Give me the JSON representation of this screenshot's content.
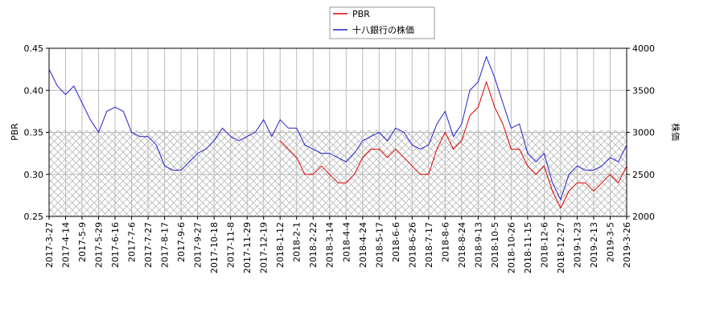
{
  "chart_data": {
    "type": "line",
    "categories": [
      "2017-3-27",
      null,
      "2017-4-14",
      null,
      "2017-5-9",
      null,
      "2017-5-29",
      null,
      "2017-6-16",
      null,
      "2017-7-6",
      null,
      "2017-7-27",
      null,
      "2017-8-17",
      null,
      "2017-9-6",
      null,
      "2017-9-27",
      null,
      "2017-10-18",
      null,
      "2017-11-8",
      null,
      "2017-11-29",
      null,
      "2017-12-19",
      null,
      "2018-1-12",
      null,
      "2018-2-1",
      null,
      "2018-2-22",
      null,
      "2018-3-14",
      null,
      "2018-4-4",
      null,
      "2018-4-24",
      null,
      "2018-5-17",
      null,
      "2018-6-6",
      null,
      "2018-6-26",
      null,
      "2018-7-17",
      null,
      "2018-8-6",
      null,
      "2018-8-24",
      null,
      "2018-9-13",
      null,
      "2018-10-5",
      null,
      "2018-10-26",
      null,
      "2018-11-15",
      null,
      "2018-12-6",
      null,
      "2018-12-27",
      null,
      "2019-1-23",
      null,
      "2019-2-13",
      null,
      "2019-3-5",
      null,
      "2019-3-26"
    ],
    "series": [
      {
        "name": "PBR",
        "color": "#dd0000",
        "axis": "y",
        "values": [
          null,
          null,
          null,
          null,
          null,
          null,
          null,
          null,
          null,
          null,
          null,
          null,
          null,
          null,
          null,
          null,
          null,
          null,
          null,
          null,
          null,
          null,
          null,
          null,
          null,
          null,
          null,
          null,
          0.34,
          0.33,
          0.32,
          0.3,
          0.3,
          0.31,
          0.3,
          0.29,
          0.29,
          0.3,
          0.32,
          0.33,
          0.33,
          0.32,
          0.33,
          0.32,
          0.31,
          0.3,
          0.3,
          0.33,
          0.35,
          0.33,
          0.34,
          0.37,
          0.38,
          0.41,
          0.38,
          0.36,
          0.33,
          0.33,
          0.31,
          0.3,
          0.31,
          0.28,
          0.26,
          0.28,
          0.29,
          0.29,
          0.28,
          0.29,
          0.3,
          0.29,
          0.31
        ]
      },
      {
        "name": "十八銀行の株価",
        "color": "#2222cc",
        "axis": "y2",
        "values": [
          3750,
          3550,
          3450,
          3550,
          3350,
          3150,
          3000,
          3250,
          3300,
          3250,
          3000,
          2950,
          2950,
          2850,
          2600,
          2550,
          2550,
          2650,
          2750,
          2800,
          2900,
          3050,
          2950,
          2900,
          2950,
          3000,
          3150,
          2950,
          3150,
          3050,
          3050,
          2850,
          2800,
          2750,
          2750,
          2700,
          2650,
          2750,
          2900,
          2950,
          3000,
          2900,
          3050,
          3000,
          2850,
          2800,
          2850,
          3100,
          3250,
          2950,
          3100,
          3500,
          3600,
          3900,
          3650,
          3350,
          3050,
          3100,
          2750,
          2650,
          2750,
          2400,
          2200,
          2500,
          2600,
          2550,
          2550,
          2600,
          2700,
          2650,
          2850
        ]
      }
    ],
    "ylabel": "PBR",
    "y2label": "株価",
    "ylim": [
      0.25,
      0.45
    ],
    "yticks": [
      {
        "value": 0.25,
        "label": "0.25"
      },
      {
        "value": 0.3,
        "label": "0.30"
      },
      {
        "value": 0.35,
        "label": "0.35"
      },
      {
        "value": 0.4,
        "label": "0.40"
      },
      {
        "value": 0.45,
        "label": "0.45"
      }
    ],
    "y2lim": [
      2000,
      4000
    ],
    "y2ticks": [
      2000,
      2500,
      3000,
      3500,
      4000
    ],
    "grid": true
  }
}
